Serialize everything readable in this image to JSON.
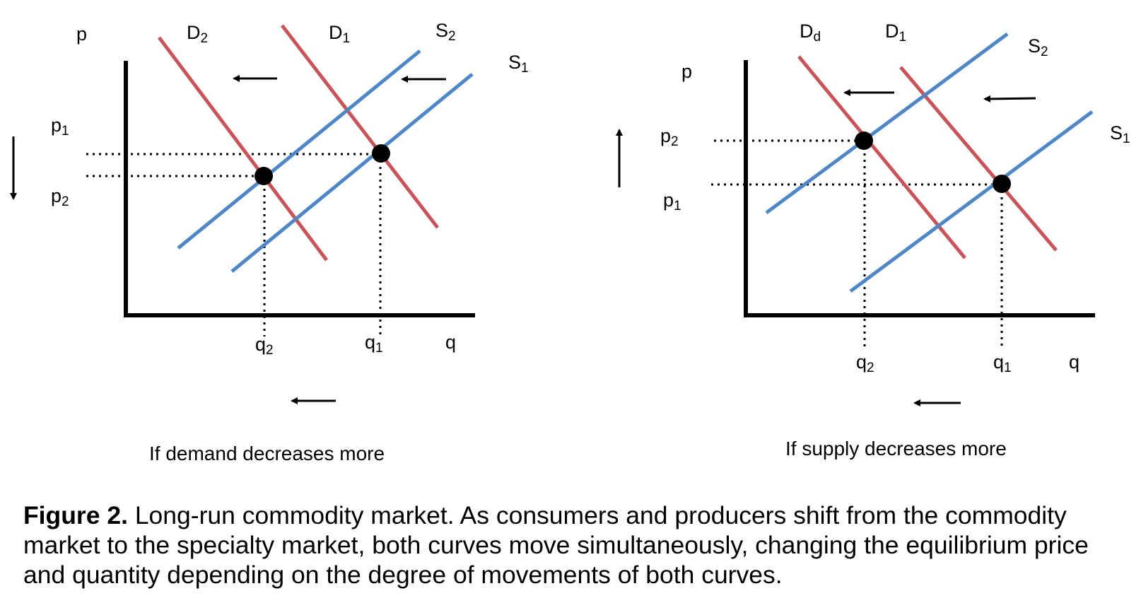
{
  "colors": {
    "demand": "#c8545a",
    "supply": "#4e86c6",
    "ink": "#000000"
  },
  "panels": [
    {
      "id": "left",
      "caption": "If demand decreases more",
      "axis_labels": {
        "y": "p",
        "x": "q"
      },
      "curve_labels": {
        "D2": {
          "base": "D",
          "sub": "2"
        },
        "D1": {
          "base": "D",
          "sub": "1"
        },
        "S2": {
          "base": "S",
          "sub": "2"
        },
        "S1": {
          "base": "S",
          "sub": "1"
        }
      },
      "price_labels": {
        "p1": {
          "base": "p",
          "sub": "1"
        },
        "p2": {
          "base": "p",
          "sub": "2"
        }
      },
      "quantity_labels": {
        "q2": {
          "base": "q",
          "sub": "2"
        },
        "q1": {
          "base": "q",
          "sub": "1"
        }
      },
      "price_change": "down",
      "quantity_change": "left",
      "demand_shift": "left",
      "supply_shift": "left"
    },
    {
      "id": "right",
      "caption": "If supply decreases more",
      "axis_labels": {
        "y": "p",
        "x": "q"
      },
      "curve_labels": {
        "Dd": {
          "base": "D",
          "sub": "d"
        },
        "D1": {
          "base": "D",
          "sub": "1"
        },
        "S2": {
          "base": "S",
          "sub": "2"
        },
        "S1": {
          "base": "S",
          "sub": "1"
        }
      },
      "price_labels": {
        "p2": {
          "base": "p",
          "sub": "2"
        },
        "p1": {
          "base": "p",
          "sub": "1"
        }
      },
      "quantity_labels": {
        "q2": {
          "base": "q",
          "sub": "2"
        },
        "q1": {
          "base": "q",
          "sub": "1"
        }
      },
      "price_change": "up",
      "quantity_change": "left",
      "demand_shift": "left",
      "supply_shift": "left"
    }
  ],
  "caption": {
    "label": "Figure 2.",
    "text": " Long-run commodity market. As consumers and producers shift from the commodity market to the specialty market, both curves move simultaneously, changing the equilibrium price and quantity depending on the degree of movements of both curves."
  }
}
